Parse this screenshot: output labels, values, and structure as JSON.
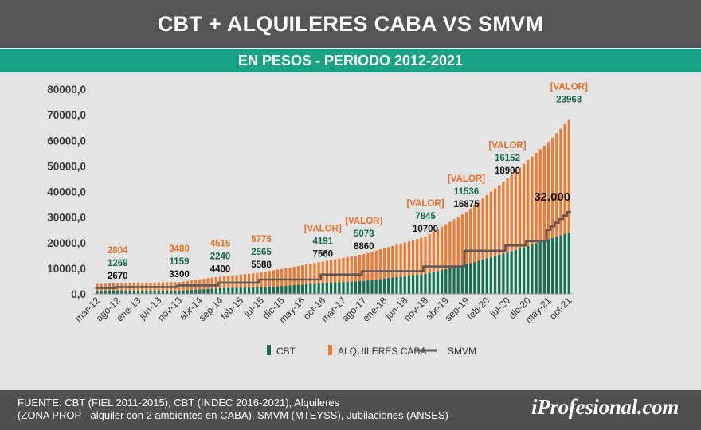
{
  "header": {
    "title": "CBT + ALQUILERES CABA VS SMVM",
    "subtitle": "EN PESOS - PERIODO 2012-2021"
  },
  "footer": {
    "source_line1": "FUENTE: CBT (FIEL 2011-2015), CBT (INDEC 2016-2021), Alquileres",
    "source_line2": "(ZONA PROP - alquiler con 2 ambientes en CABA), SMVM (MTEYSS), Jubilaciones (ANSES)",
    "logo_prefix": "i",
    "logo_main": "Profesional.com"
  },
  "colors": {
    "cbt": "#136f50",
    "alquileres": "#ee7a30",
    "smvm": "#5b5b5b",
    "annot_orange": "#e8702a",
    "annot_green": "#17694c",
    "annot_black": "#111111"
  },
  "chart_data": {
    "type": "bar",
    "stacked": true,
    "ylim": [
      0,
      80000
    ],
    "yticks": [
      "0,0",
      "10000,0",
      "20000,0",
      "30000,0",
      "40000,0",
      "50000,0",
      "60000,0",
      "70000,0",
      "80000,0"
    ],
    "xticks": [
      "mar-12",
      "ago-12",
      "ene-13",
      "jun-13",
      "nov-13",
      "abr-14",
      "sep-14",
      "feb-15",
      "jul-15",
      "dic-15",
      "may-16",
      "oct-16",
      "mar-17",
      "ago-17",
      "ene-18",
      "jun-18",
      "nov-18",
      "abr-19",
      "sep-19",
      "feb-20",
      "jul-20",
      "dic-20",
      "may-21",
      "oct-21"
    ],
    "first_period": "mar-12",
    "last_period": "oct-21",
    "legend": [
      "CBT",
      "ALQUILERES CABA",
      "SMVM"
    ],
    "legend_position": "bottom",
    "series": [
      {
        "name": "CBT",
        "points": [
          [
            "mar-12",
            1200
          ],
          [
            "ago-12",
            1269
          ],
          [
            "nov-13",
            1159
          ],
          [
            "sep-14",
            2240
          ],
          [
            "jul-15",
            2565
          ],
          [
            "oct-16",
            4191
          ],
          [
            "ago-17",
            5073
          ],
          [
            "nov-18",
            7845
          ],
          [
            "sep-19",
            11536
          ],
          [
            "jul-20",
            16152
          ],
          [
            "oct-21",
            23963
          ]
        ]
      },
      {
        "name": "ALQUILERES CABA",
        "points": [
          [
            "mar-12",
            2700
          ],
          [
            "ago-12",
            2804
          ],
          [
            "nov-13",
            3480
          ],
          [
            "sep-14",
            4515
          ],
          [
            "jul-15",
            5775
          ],
          [
            "oct-16",
            8400
          ],
          [
            "ago-17",
            10500
          ],
          [
            "nov-18",
            14500
          ],
          [
            "sep-19",
            20500
          ],
          [
            "jul-20",
            29000
          ],
          [
            "may-21",
            38000
          ],
          [
            "oct-21",
            44000
          ]
        ]
      },
      {
        "name": "SMVM",
        "points": [
          [
            "mar-12",
            2300
          ],
          [
            "ago-12",
            2670
          ],
          [
            "nov-13",
            3300
          ],
          [
            "sep-14",
            4400
          ],
          [
            "jul-15",
            5588
          ],
          [
            "oct-16",
            7560
          ],
          [
            "ago-17",
            8860
          ],
          [
            "nov-18",
            10700
          ],
          [
            "sep-19",
            16875
          ],
          [
            "jul-20",
            18900
          ],
          [
            "dic-20",
            20600
          ],
          [
            "may-21",
            25000
          ],
          [
            "oct-21",
            32000
          ]
        ]
      }
    ],
    "annotations": [
      {
        "period": "ago-12",
        "alquiler": "2804",
        "cbt": "1269",
        "smvm": "2670"
      },
      {
        "period": "nov-13",
        "alquiler": "3480",
        "cbt": "1159",
        "smvm": "3300"
      },
      {
        "period": "sep-14",
        "alquiler": "4515",
        "cbt": "2240",
        "smvm": "4400"
      },
      {
        "period": "jul-15",
        "alquiler": "5775",
        "cbt": "2565",
        "smvm": "5588"
      },
      {
        "period": "oct-16",
        "alquiler": "[VALOR]",
        "cbt": "4191",
        "smvm": "7560"
      },
      {
        "period": "ago-17",
        "alquiler": "[VALOR]",
        "cbt": "5073",
        "smvm": "8860"
      },
      {
        "period": "nov-18",
        "alquiler": "[VALOR]",
        "cbt": "7845",
        "smvm": "10700"
      },
      {
        "period": "sep-19",
        "alquiler": "[VALOR]",
        "cbt": "11536",
        "smvm": "16875"
      },
      {
        "period": "jul-20",
        "alquiler": "[VALOR]",
        "cbt": "16152",
        "smvm": "18900"
      },
      {
        "period": "oct-21",
        "alquiler": "[VALOR]",
        "cbt": "23963",
        "smvm": ""
      }
    ],
    "smvm_final_label": "32.000"
  }
}
